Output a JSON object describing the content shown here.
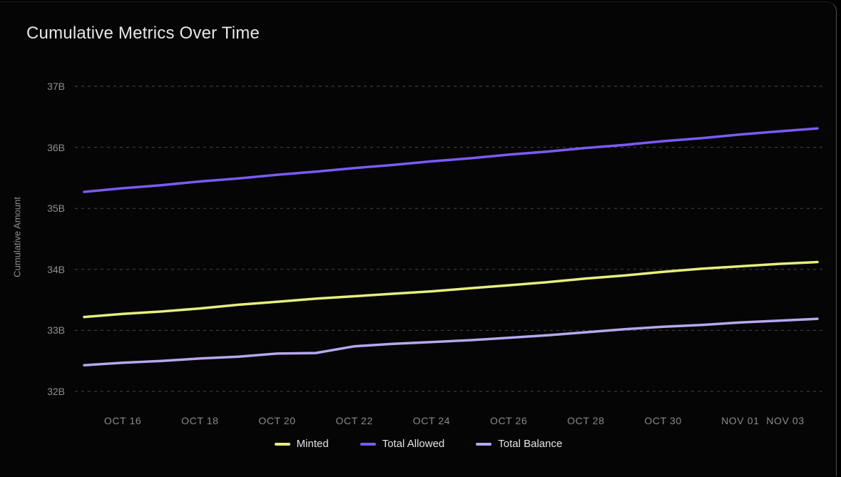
{
  "page": {
    "background": "#000000"
  },
  "card": {
    "background": "#050505",
    "border_right_color": "#4f4f4f"
  },
  "chart_data": {
    "type": "line",
    "title": "Cumulative Metrics Over Time",
    "xlabel": "",
    "ylabel": "Cumulative Amount",
    "unit": "B",
    "grid": "horizontal-dashed",
    "grid_color": "#474747",
    "legend_position": "bottom",
    "ylim": [
      31.8,
      37.25
    ],
    "x": [
      "Oct 15",
      "Oct 16",
      "Oct 17",
      "Oct 18",
      "Oct 19",
      "Oct 20",
      "Oct 21",
      "Oct 22",
      "Oct 23",
      "Oct 24",
      "Oct 25",
      "Oct 26",
      "Oct 27",
      "Oct 28",
      "Oct 29",
      "Oct 30",
      "Oct 31",
      "Nov 01",
      "Nov 02",
      "Nov 03"
    ],
    "x_tick_indices": [
      1,
      3,
      5,
      7,
      9,
      11,
      13,
      15,
      17,
      19
    ],
    "x_tick_labels": [
      "OCT 16",
      "OCT 18",
      "OCT 20",
      "OCT 22",
      "OCT 24",
      "OCT 26",
      "OCT 28",
      "OCT 30",
      "NOV 01",
      "NOV 03"
    ],
    "y_ticks": [
      37,
      36,
      35,
      34,
      33,
      32
    ],
    "y_tick_labels": [
      "37B",
      "36B",
      "35B",
      "34B",
      "33B",
      "32B"
    ],
    "series": [
      {
        "name": "Minted",
        "color": "#e7ee7d",
        "values": [
          33.22,
          33.27,
          33.31,
          33.36,
          33.42,
          33.47,
          33.52,
          33.56,
          33.6,
          33.64,
          33.69,
          33.74,
          33.79,
          33.85,
          33.9,
          33.96,
          34.01,
          34.05,
          34.09,
          34.12
        ]
      },
      {
        "name": "Total Allowed",
        "color": "#7b5bf6",
        "values": [
          35.27,
          35.33,
          35.38,
          35.44,
          35.49,
          35.55,
          35.6,
          35.66,
          35.71,
          35.77,
          35.82,
          35.88,
          35.93,
          35.99,
          36.04,
          36.1,
          36.15,
          36.21,
          36.26,
          36.31
        ]
      },
      {
        "name": "Total Balance",
        "color": "#b7a7ef",
        "values": [
          32.43,
          32.47,
          32.5,
          32.54,
          32.57,
          32.62,
          32.63,
          32.74,
          32.78,
          32.81,
          32.84,
          32.88,
          32.92,
          32.97,
          33.02,
          33.06,
          33.09,
          33.13,
          33.16,
          33.19
        ]
      }
    ],
    "text_colors": {
      "title": "#e6e6e6",
      "axis_tick": "#8f8f8f",
      "axis_label": "#8d8d8d",
      "legend": "#e3e3e3"
    }
  }
}
